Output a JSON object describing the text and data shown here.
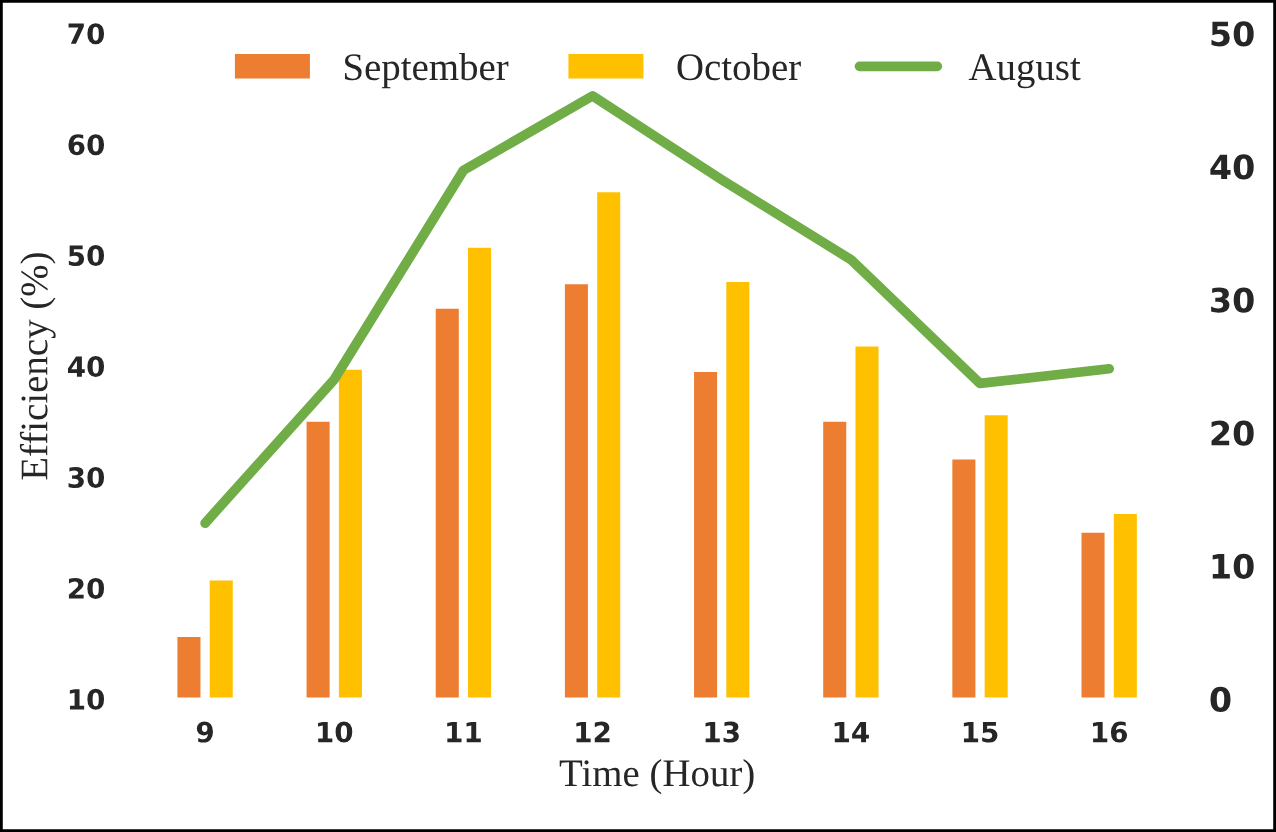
{
  "chart_data": {
    "type": "bar",
    "xlabel": "Time (Hour)",
    "ylabel": "Efficiency (%)",
    "categories": [
      "9",
      "10",
      "11",
      "12",
      "13",
      "14",
      "15",
      "16"
    ],
    "series": [
      {
        "name": "September",
        "color": "#ed7d31",
        "values": [
          15.7,
          35.1,
          45.3,
          47.5,
          39.6,
          35.1,
          31.7,
          25.1
        ]
      },
      {
        "name": "October",
        "color": "#ffc000",
        "values": [
          20.8,
          39.8,
          50.8,
          55.8,
          47.7,
          41.9,
          35.7,
          26.8
        ]
      },
      {
        "name": "August",
        "type": "line",
        "axis": "y2",
        "color": "#70ad47",
        "values": [
          13.2,
          24,
          39.7,
          45.3,
          39,
          33,
          23.7,
          24.8
        ]
      }
    ],
    "ylim": [
      10,
      70
    ],
    "yticks": [
      10,
      20,
      30,
      40,
      50,
      60,
      70
    ],
    "y2lim": [
      0,
      50
    ],
    "y2ticks": [
      0,
      10,
      20,
      30,
      40,
      50
    ],
    "grid": false,
    "legend": "top",
    "marker": "none"
  }
}
